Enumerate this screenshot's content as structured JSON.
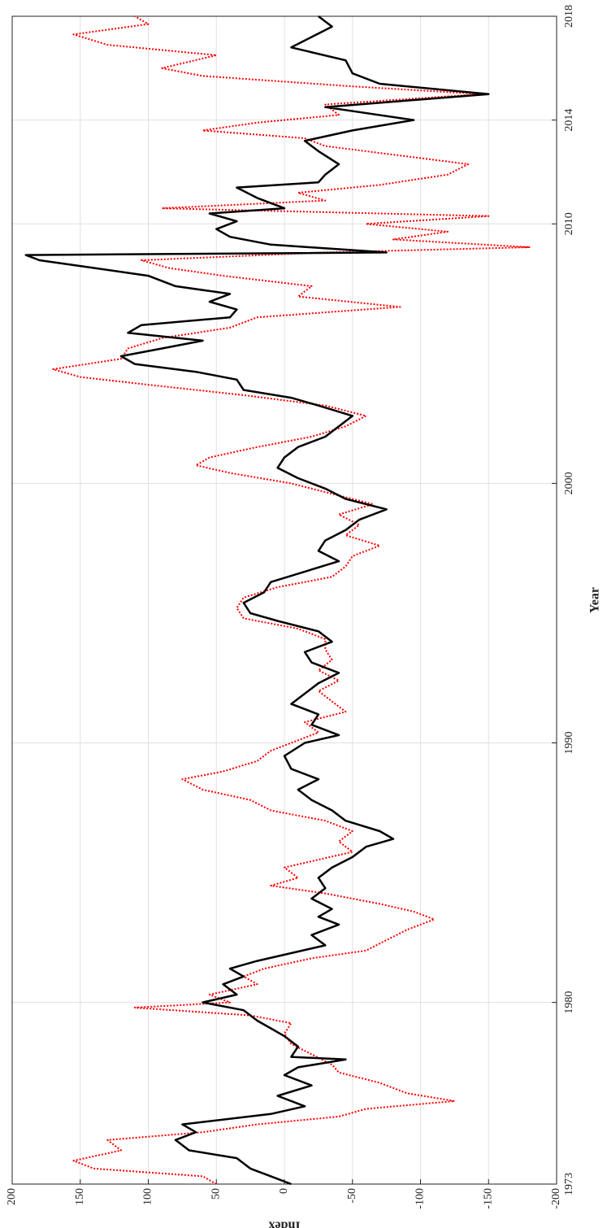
{
  "chart_data": {
    "type": "line",
    "xlabel": "Year",
    "ylabel": "Index",
    "xlim": [
      1973,
      2018
    ],
    "xticks": [
      1973,
      1980,
      1990,
      2000,
      2010,
      2014,
      2018
    ],
    "ylim": [
      -200,
      200
    ],
    "yticks": [
      200,
      150,
      100,
      50,
      0,
      -50,
      -100,
      -150,
      -200
    ],
    "grid": true,
    "series": [
      {
        "color": "#000000",
        "line_style": "solid",
        "x": [
          1973.0,
          1973.3,
          1973.6,
          1974.0,
          1974.3,
          1974.7,
          1975.0,
          1975.3,
          1975.7,
          1976.0,
          1976.4,
          1976.8,
          1977.2,
          1977.5,
          1977.8,
          1977.9,
          1978.3,
          1978.7,
          1979.0,
          1979.3,
          1979.7,
          1980.0,
          1980.3,
          1980.7,
          1981.0,
          1981.3,
          1981.6,
          1981.9,
          1982.2,
          1982.6,
          1983.0,
          1983.3,
          1983.6,
          1984.0,
          1984.4,
          1984.8,
          1985.2,
          1985.6,
          1986.0,
          1986.3,
          1986.6,
          1987.0,
          1987.4,
          1987.8,
          1988.2,
          1988.6,
          1989.0,
          1989.5,
          1990.0,
          1990.3,
          1990.7,
          1991.1,
          1991.5,
          1991.9,
          1992.3,
          1992.7,
          1993.1,
          1993.5,
          1993.9,
          1994.3,
          1994.7,
          1995.0,
          1995.4,
          1995.8,
          1996.2,
          1996.6,
          1997.0,
          1997.4,
          1997.8,
          1998.2,
          1998.6,
          1999.0,
          1999.4,
          1999.8,
          2000.2,
          2000.6,
          2001.0,
          2001.4,
          2001.8,
          2002.2,
          2002.6,
          2003.0,
          2003.3,
          2003.6,
          2004.0,
          2004.3,
          2004.6,
          2004.9,
          2005.2,
          2005.5,
          2005.8,
          2006.1,
          2006.4,
          2006.7,
          2007.0,
          2007.3,
          2007.6,
          2008.0,
          2008.3,
          2008.6,
          2008.8,
          2008.9,
          2009.2,
          2009.5,
          2009.8,
          2010.1,
          2010.4,
          2010.6,
          2011.0,
          2011.4,
          2011.6,
          2011.9,
          2012.3,
          2012.8,
          2013.2,
          2013.6,
          2014.0,
          2014.5,
          2015.0,
          2015.4,
          2015.8,
          2016.3,
          2016.8,
          2017.2,
          2017.6,
          2018.0
        ],
        "values": [
          -5,
          10,
          25,
          35,
          70,
          80,
          65,
          75,
          10,
          -15,
          5,
          -20,
          0,
          -10,
          -45,
          -5,
          -10,
          0,
          10,
          20,
          30,
          60,
          35,
          45,
          30,
          40,
          20,
          -5,
          -30,
          -20,
          -40,
          -25,
          -35,
          -20,
          -30,
          -25,
          -35,
          -50,
          -60,
          -80,
          -70,
          -45,
          -35,
          -20,
          -10,
          -25,
          -5,
          0,
          -15,
          -40,
          -20,
          -25,
          -5,
          -15,
          -25,
          -40,
          -20,
          -15,
          -35,
          -25,
          5,
          25,
          30,
          15,
          10,
          -15,
          -40,
          -25,
          -30,
          -45,
          -55,
          -75,
          -45,
          -30,
          -10,
          5,
          0,
          -10,
          -30,
          -40,
          -50,
          -25,
          -5,
          30,
          35,
          65,
          110,
          120,
          90,
          60,
          115,
          105,
          40,
          35,
          55,
          40,
          80,
          100,
          140,
          180,
          190,
          -75,
          10,
          40,
          50,
          35,
          55,
          0,
          20,
          35,
          -25,
          -30,
          -40,
          -25,
          -15,
          -50,
          -95,
          -30,
          -150,
          -70,
          -50,
          -45,
          -5,
          -20,
          -35,
          -25
        ]
      },
      {
        "color": "#ff0000",
        "line_style": "dotted",
        "x": [
          1973.0,
          1973.3,
          1973.6,
          1973.9,
          1974.3,
          1974.7,
          1975.0,
          1975.3,
          1975.6,
          1975.9,
          1976.2,
          1976.5,
          1976.9,
          1977.3,
          1977.6,
          1978.0,
          1978.4,
          1978.8,
          1979.2,
          1979.5,
          1979.8,
          1980.0,
          1980.3,
          1980.7,
          1981.0,
          1981.3,
          1981.7,
          1982.0,
          1982.4,
          1982.8,
          1983.2,
          1983.5,
          1983.8,
          1984.2,
          1984.5,
          1984.8,
          1985.2,
          1985.5,
          1985.8,
          1986.2,
          1986.6,
          1987.0,
          1987.4,
          1987.8,
          1988.2,
          1988.6,
          1988.9,
          1989.3,
          1989.7,
          1990.0,
          1990.4,
          1990.8,
          1991.2,
          1991.6,
          1992.0,
          1992.4,
          1992.8,
          1993.2,
          1993.6,
          1994.0,
          1994.4,
          1994.8,
          1995.2,
          1995.6,
          1996.0,
          1996.4,
          1996.8,
          1997.2,
          1997.6,
          1998.0,
          1998.4,
          1998.8,
          1999.2,
          1999.6,
          2000.0,
          2000.4,
          2000.7,
          2001.0,
          2001.4,
          2001.8,
          2002.2,
          2002.6,
          2003.0,
          2003.4,
          2003.8,
          2004.1,
          2004.4,
          2004.8,
          2005.2,
          2005.6,
          2006.0,
          2006.4,
          2006.8,
          2007.2,
          2007.6,
          2008.0,
          2008.3,
          2008.6,
          2008.9,
          2009.1,
          2009.4,
          2009.7,
          2010.0,
          2010.3,
          2010.6,
          2010.9,
          2011.2,
          2011.5,
          2011.9,
          2012.3,
          2012.7,
          2013.0,
          2013.3,
          2013.6,
          2013.9,
          2014.2,
          2014.6,
          2015.0,
          2015.3,
          2015.7,
          2016.0,
          2016.5,
          2016.9,
          2017.3,
          2017.7,
          2018.0
        ],
        "values": [
          50,
          60,
          140,
          155,
          120,
          130,
          60,
          20,
          -40,
          -60,
          -125,
          -90,
          -70,
          -40,
          -35,
          -20,
          -5,
          0,
          -5,
          25,
          110,
          40,
          55,
          20,
          30,
          15,
          -20,
          -60,
          -75,
          -90,
          -110,
          -95,
          -70,
          -30,
          10,
          -10,
          0,
          -25,
          -50,
          -40,
          -50,
          -30,
          10,
          25,
          60,
          75,
          45,
          20,
          10,
          -5,
          -25,
          -15,
          -45,
          -35,
          -25,
          -40,
          -25,
          -35,
          -30,
          -30,
          -10,
          30,
          35,
          30,
          5,
          -35,
          -45,
          -50,
          -70,
          -45,
          -55,
          -40,
          -65,
          -35,
          -5,
          40,
          65,
          55,
          20,
          -20,
          -45,
          -60,
          -30,
          30,
          100,
          150,
          170,
          120,
          115,
          90,
          40,
          20,
          -85,
          -10,
          -20,
          45,
          85,
          105,
          -30,
          -180,
          -80,
          -120,
          -60,
          -150,
          90,
          -30,
          -10,
          -70,
          -120,
          -135,
          -75,
          -30,
          -15,
          60,
          20,
          -40,
          -30,
          -145,
          -50,
          60,
          90,
          50,
          130,
          155,
          100,
          110
        ]
      }
    ]
  }
}
